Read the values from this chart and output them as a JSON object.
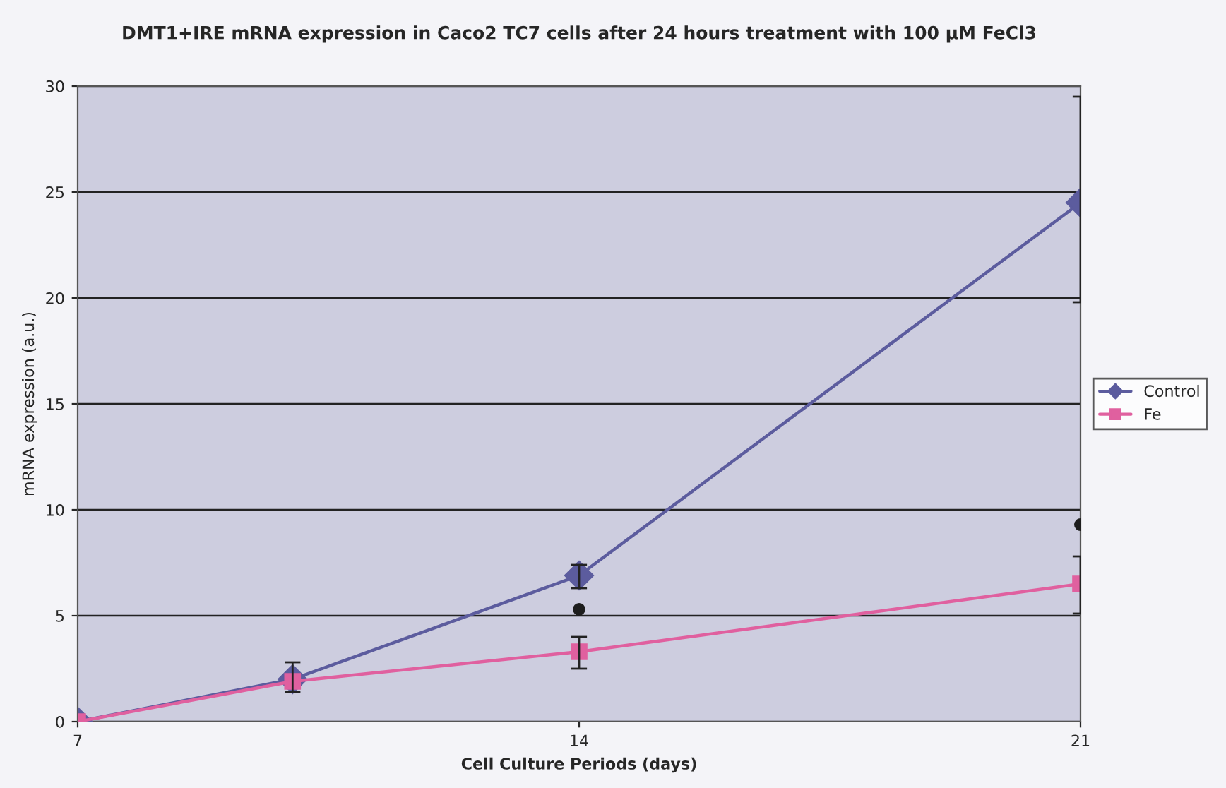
{
  "chart_data": {
    "type": "line",
    "title": "DMT1+IRE mRNA expression in Caco2 TC7 cells after 24 hours treatment with 100 μM FeCl3",
    "xlabel": "Cell Culture Periods (days)",
    "ylabel": "mRNA expression (a.u.)",
    "x": [
      7,
      10,
      14,
      21
    ],
    "series": [
      {
        "name": "Control",
        "color": "#5c5c9e",
        "marker": "diamond",
        "values": [
          0,
          2.0,
          6.9,
          24.5
        ],
        "errors": [
          null,
          [
            1.4,
            2.8
          ],
          [
            6.3,
            7.4
          ],
          [
            19.8,
            29.5
          ]
        ]
      },
      {
        "name": "Fe",
        "color": "#e0609f",
        "marker": "square",
        "values": [
          0,
          1.9,
          3.3,
          6.5
        ],
        "errors": [
          null,
          null,
          [
            2.5,
            4.0
          ],
          [
            5.1,
            7.8
          ]
        ]
      },
      {
        "type": "scatter",
        "color": "#1e1e1e",
        "marker": "circle",
        "x": [
          14,
          21
        ],
        "values": [
          5.3,
          9.3
        ]
      }
    ],
    "xlim": [
      7,
      21
    ],
    "xticks": [
      7,
      14,
      21
    ],
    "ylim": [
      0,
      30
    ],
    "yticks": [
      0,
      5,
      10,
      15,
      20,
      25,
      30
    ],
    "grid": "y",
    "legend": "right",
    "line_style": "solid"
  }
}
